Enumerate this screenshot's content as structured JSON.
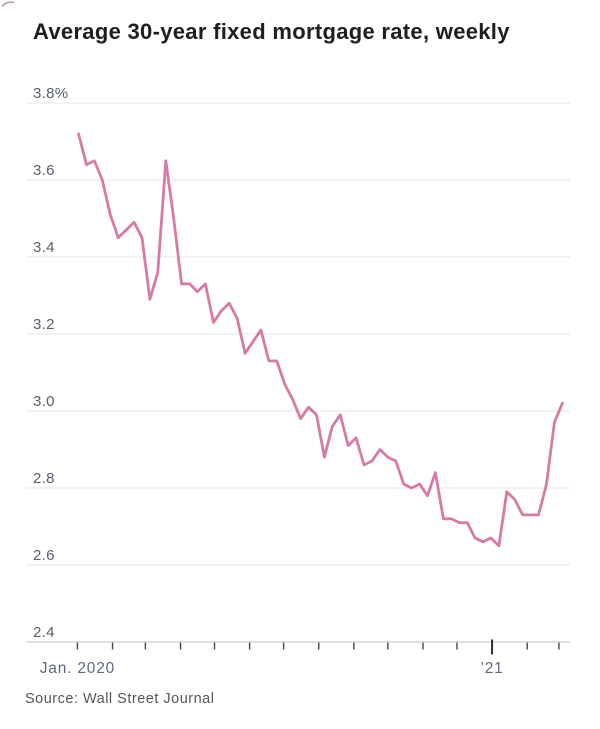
{
  "chart_data": {
    "type": "line",
    "title": "Average 30-year fixed mortgage rate, weekly",
    "source": "Source: Wall Street Journal",
    "unit": "%",
    "ylim": [
      2.4,
      3.8
    ],
    "grid": true,
    "legend": "none",
    "x": [
      "2020-01-02",
      "2020-01-09",
      "2020-01-16",
      "2020-01-23",
      "2020-01-30",
      "2020-02-06",
      "2020-02-13",
      "2020-02-20",
      "2020-02-27",
      "2020-03-05",
      "2020-03-12",
      "2020-03-19",
      "2020-03-26",
      "2020-04-02",
      "2020-04-09",
      "2020-04-16",
      "2020-04-23",
      "2020-04-30",
      "2020-05-07",
      "2020-05-14",
      "2020-05-21",
      "2020-05-28",
      "2020-06-04",
      "2020-06-11",
      "2020-06-18",
      "2020-06-25",
      "2020-07-02",
      "2020-07-09",
      "2020-07-16",
      "2020-07-23",
      "2020-07-30",
      "2020-08-06",
      "2020-08-13",
      "2020-08-20",
      "2020-08-27",
      "2020-09-03",
      "2020-09-10",
      "2020-09-17",
      "2020-09-24",
      "2020-10-01",
      "2020-10-08",
      "2020-10-15",
      "2020-10-22",
      "2020-10-29",
      "2020-11-05",
      "2020-11-12",
      "2020-11-19",
      "2020-11-26",
      "2020-12-03",
      "2020-12-10",
      "2020-12-17",
      "2020-12-24",
      "2020-12-31",
      "2021-01-07",
      "2021-01-14",
      "2021-01-21",
      "2021-01-28",
      "2021-02-04",
      "2021-02-11",
      "2021-02-18",
      "2021-02-25",
      "2021-03-04"
    ],
    "values": [
      3.72,
      3.64,
      3.65,
      3.6,
      3.51,
      3.45,
      3.47,
      3.49,
      3.45,
      3.29,
      3.36,
      3.65,
      3.5,
      3.33,
      3.33,
      3.31,
      3.33,
      3.23,
      3.26,
      3.28,
      3.24,
      3.15,
      3.18,
      3.21,
      3.13,
      3.13,
      3.07,
      3.03,
      2.98,
      3.01,
      2.99,
      2.88,
      2.96,
      2.99,
      2.91,
      2.93,
      2.86,
      2.87,
      2.9,
      2.88,
      2.87,
      2.81,
      2.8,
      2.81,
      2.78,
      2.84,
      2.72,
      2.72,
      2.71,
      2.71,
      2.67,
      2.66,
      2.67,
      2.65,
      2.79,
      2.77,
      2.73,
      2.73,
      2.73,
      2.81,
      2.97,
      3.02
    ],
    "y_ticks": [
      "3.8%",
      "3.6",
      "3.4",
      "3.2",
      "3.0",
      "2.8",
      "2.6",
      "2.4"
    ],
    "x_ticks": [
      {
        "date": "2020-01-01",
        "major": false
      },
      {
        "date": "2020-02-01",
        "major": false
      },
      {
        "date": "2020-03-01",
        "major": false
      },
      {
        "date": "2020-04-01",
        "major": false
      },
      {
        "date": "2020-05-01",
        "major": false
      },
      {
        "date": "2020-06-01",
        "major": false
      },
      {
        "date": "2020-07-01",
        "major": false
      },
      {
        "date": "2020-08-01",
        "major": false
      },
      {
        "date": "2020-09-01",
        "major": false
      },
      {
        "date": "2020-10-01",
        "major": false
      },
      {
        "date": "2020-11-01",
        "major": false
      },
      {
        "date": "2020-12-01",
        "major": false
      },
      {
        "date": "2021-01-01",
        "major": true
      },
      {
        "date": "2021-02-01",
        "major": false
      },
      {
        "date": "2021-03-01",
        "major": false
      }
    ],
    "x_tick_labels": [
      {
        "label": "Jan. 2020",
        "date": "2020-01-01"
      },
      {
        "label": "’21",
        "date": "2021-01-01"
      }
    ]
  },
  "colors": {
    "line": "#d67ba5",
    "grid": "#e4e5e6",
    "axis": "#cbcdd0",
    "title": "#1e1e22",
    "y_label": "#55606c",
    "x_label": "#5d6b7c",
    "source": "#54565a"
  }
}
